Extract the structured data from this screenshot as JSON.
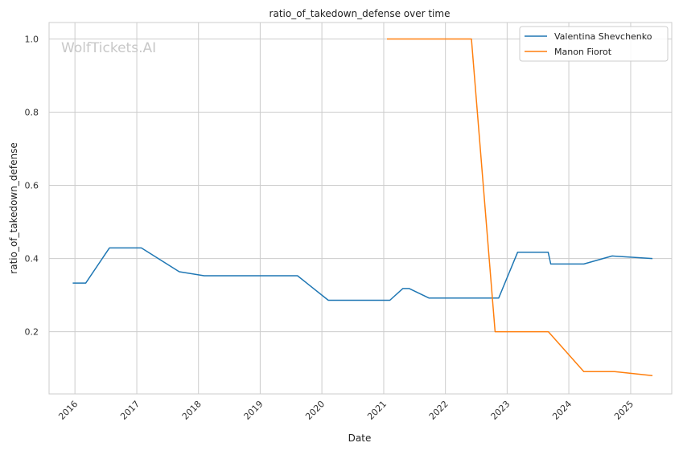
{
  "chart_data": {
    "type": "line",
    "title": "ratio_of_takedown_defense over time",
    "xlabel": "Date",
    "ylabel": "ratio_of_takedown_defense",
    "watermark": "WolfTickets.AI",
    "ylim": [
      0.03,
      1.045
    ],
    "xlim": [
      "2015-08-01",
      "2025-09-01"
    ],
    "yticks": [
      0.2,
      0.4,
      0.6,
      0.8,
      1.0
    ],
    "ytick_labels": [
      "0.2",
      "0.4",
      "0.6",
      "0.8",
      "1.0"
    ],
    "xticks": [
      "2016-01-01",
      "2017-01-01",
      "2018-01-01",
      "2019-01-01",
      "2020-01-01",
      "2021-01-01",
      "2022-01-01",
      "2023-01-01",
      "2024-01-01",
      "2025-01-01"
    ],
    "xtick_labels": [
      "2016",
      "2017",
      "2018",
      "2019",
      "2020",
      "2021",
      "2022",
      "2023",
      "2024",
      "2025"
    ],
    "grid": true,
    "legend_position": "top-right",
    "series": [
      {
        "name": "Valentina Shevchenko",
        "color": "#1f77b4",
        "points": [
          [
            "2015-12-19",
            0.333
          ],
          [
            "2016-03-05",
            0.333
          ],
          [
            "2016-07-23",
            0.429
          ],
          [
            "2017-01-28",
            0.429
          ],
          [
            "2017-09-09",
            0.364
          ],
          [
            "2018-02-03",
            0.353
          ],
          [
            "2019-08-10",
            0.353
          ],
          [
            "2020-02-08",
            0.286
          ],
          [
            "2021-02-06",
            0.286
          ],
          [
            "2021-04-24",
            0.318
          ],
          [
            "2021-06-01",
            0.318
          ],
          [
            "2021-09-25",
            0.292
          ],
          [
            "2022-11-12",
            0.292
          ],
          [
            "2023-03-04",
            0.417
          ],
          [
            "2023-09-01",
            0.417
          ],
          [
            "2023-09-16",
            0.385
          ],
          [
            "2024-03-30",
            0.385
          ],
          [
            "2024-09-14",
            0.407
          ],
          [
            "2025-05-10",
            0.4
          ]
        ]
      },
      {
        "name": "Manon Fiorot",
        "color": "#ff7f0e",
        "points": [
          [
            "2021-01-20",
            1.0
          ],
          [
            "2022-06-04",
            1.0
          ],
          [
            "2022-10-22",
            0.2
          ],
          [
            "2023-09-02",
            0.2
          ],
          [
            "2024-03-30",
            0.091
          ],
          [
            "2024-09-28",
            0.091
          ],
          [
            "2025-05-10",
            0.08
          ]
        ]
      }
    ]
  }
}
